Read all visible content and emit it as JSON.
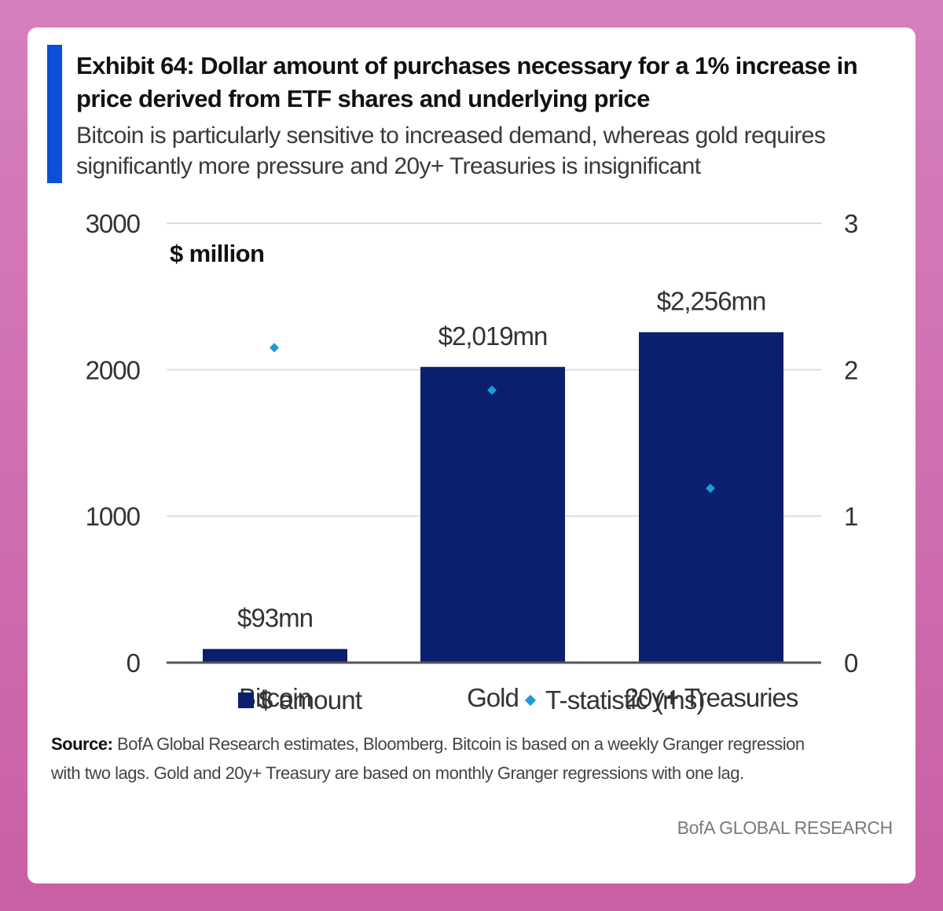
{
  "exhibit": {
    "title": "Exhibit 64: Dollar amount of purchases necessary for a 1% increase in price derived from ETF shares and underlying price",
    "subtitle": "Bitcoin is particularly sensitive to increased demand, whereas gold requires significantly more pressure and 20y+ Treasuries is insignificant"
  },
  "chart_data": {
    "type": "bar",
    "title": "",
    "unit_label": "$ million",
    "categories": [
      "Bitcoin",
      "Gold",
      "20y+ Treasuries"
    ],
    "series": [
      {
        "name": "$ amount",
        "type": "bar",
        "axis": "left",
        "values": [
          93,
          2019,
          2256
        ],
        "data_labels": [
          "$93mn",
          "$2,019mn",
          "$2,256mn"
        ]
      },
      {
        "name": "T-statistic (rhs)",
        "type": "scatter",
        "axis": "right",
        "values": [
          2.15,
          1.86,
          1.19
        ]
      }
    ],
    "ylim": [
      0,
      3000
    ],
    "y_ticks": [
      0,
      1000,
      2000,
      3000
    ],
    "y2lim": [
      0,
      3
    ],
    "y2_ticks": [
      0,
      1,
      2,
      3
    ],
    "grid": true,
    "legend_position": "bottom",
    "colors": {
      "bar": "#0a1f6e",
      "marker": "#1e9ad6",
      "grid": "#dddddd",
      "axis": "#555555"
    }
  },
  "legend": {
    "bar_label": "$ amount",
    "marker_label": "T-statistic (rhs)"
  },
  "footer": {
    "source_label": "Source:",
    "source_text": "BofA Global Research estimates, Bloomberg. Bitcoin is based on a weekly Granger regression with two lags. Gold and 20y+ Treasury are based on monthly Granger regressions with one lag.",
    "brand": "BofA GLOBAL RESEARCH"
  },
  "theme": {
    "accent": "#0a4fd6",
    "background": "#ffffff"
  }
}
